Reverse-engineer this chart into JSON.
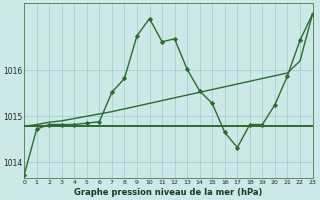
{
  "title": "Graphe pression niveau de la mer (hPa)",
  "background_color": "#cce8e8",
  "grid_color": "#99cccc",
  "line_color": "#2d6b2d",
  "xlim": [
    0,
    23
  ],
  "ylim_min": 1013.65,
  "ylim_max": 1017.45,
  "yticks": [
    1014,
    1015,
    1016
  ],
  "hours": [
    0,
    1,
    2,
    3,
    4,
    5,
    6,
    7,
    8,
    9,
    10,
    11,
    12,
    13,
    14,
    15,
    16,
    17,
    18,
    19,
    20,
    21,
    22,
    23
  ],
  "line1_wavy": [
    1013.72,
    1014.72,
    1014.82,
    1014.82,
    1014.82,
    1014.85,
    1014.88,
    1015.52,
    1015.82,
    1016.75,
    1017.12,
    1016.62,
    1016.68,
    1016.02,
    1015.55,
    1015.28,
    1014.65,
    1014.32,
    1014.82,
    1014.82,
    1015.25,
    1015.88,
    1016.65,
    1017.22
  ],
  "line2_diagonal": [
    1014.78,
    1014.82,
    1014.87,
    1014.9,
    1014.95,
    1015.0,
    1015.05,
    1015.1,
    1015.16,
    1015.22,
    1015.28,
    1015.34,
    1015.4,
    1015.46,
    1015.52,
    1015.58,
    1015.64,
    1015.7,
    1015.76,
    1015.82,
    1015.88,
    1015.94,
    1016.2,
    1017.22
  ],
  "line3_flat": [
    1014.78,
    1014.78,
    1014.78,
    1014.78,
    1014.78,
    1014.78,
    1014.78,
    1014.78,
    1014.78,
    1014.78,
    1014.78,
    1014.78,
    1014.78,
    1014.78,
    1014.78,
    1014.78,
    1014.78,
    1014.78,
    1014.78,
    1014.78,
    1014.78,
    1014.78,
    1014.78,
    1014.78
  ]
}
